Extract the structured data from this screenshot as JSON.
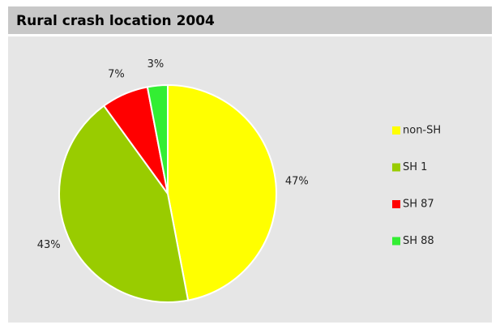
{
  "chart_data": {
    "type": "pie",
    "title": "Rural crash location 2004",
    "categories": [
      "non-SH",
      "SH 1",
      "SH 87",
      "SH 88"
    ],
    "values": [
      47,
      43,
      7,
      3
    ],
    "value_labels": [
      "47%",
      "43%",
      "7%",
      "3%"
    ],
    "colors": [
      "#ffff00",
      "#99cc00",
      "#ff0000",
      "#33ee33"
    ],
    "legend": "right"
  }
}
